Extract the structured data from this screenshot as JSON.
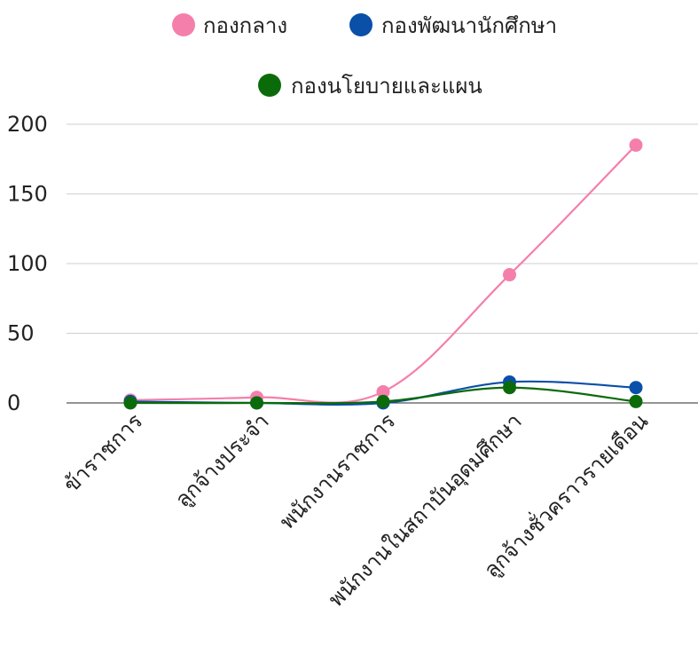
{
  "chart_data": {
    "type": "line",
    "title": "",
    "xlabel": "",
    "ylabel": "",
    "categories": [
      "ข้าราชการ",
      "ลูกจ้างประจำ",
      "พนักงานราชการ",
      "พนักงานในสถาบันอุดมศึกษา",
      "ลูกจ้างชั่วคราวรายเดือน"
    ],
    "series": [
      {
        "name": "กองกลาง",
        "color": "#f47fab",
        "values": [
          2,
          4,
          8,
          92,
          185
        ]
      },
      {
        "name": "กองพัฒนานักศึกษา",
        "color": "#0a4fa8",
        "values": [
          1,
          0,
          0,
          15,
          11
        ]
      },
      {
        "name": "กองนโยบายและแผน",
        "color": "#0b6b0b",
        "values": [
          0,
          0,
          1,
          11,
          1
        ]
      }
    ],
    "ylim": [
      0,
      200
    ],
    "yticks": [
      0,
      50,
      100,
      150,
      200
    ],
    "grid": true,
    "legend_position": "top",
    "smooth": true
  }
}
